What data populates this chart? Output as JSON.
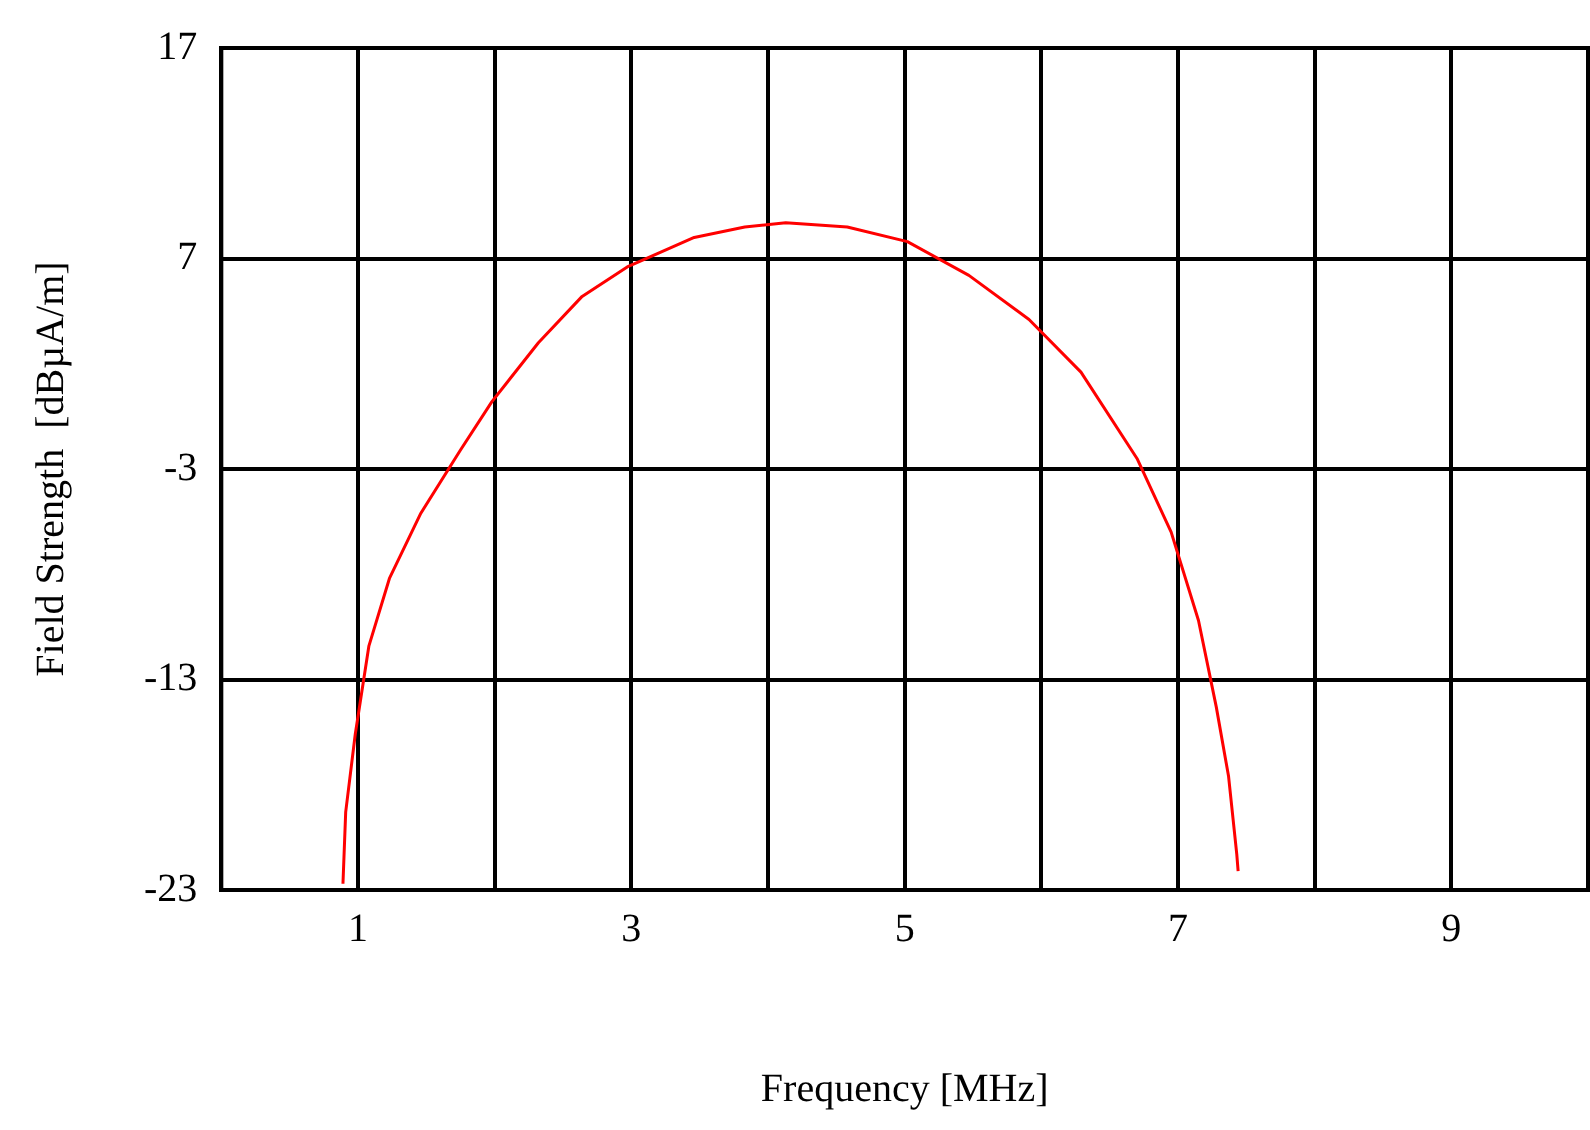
{
  "chart_data": {
    "type": "line",
    "xlabel": "Frequency [MHz]",
    "ylabel": "Field Strength  [dBµA/m]",
    "xlim": [
      0,
      10
    ],
    "ylim": [
      -23,
      17
    ],
    "xticks": [
      {
        "value": 1,
        "label": "1"
      },
      {
        "value": 2,
        "label": null
      },
      {
        "value": 3,
        "label": "3"
      },
      {
        "value": 4,
        "label": null
      },
      {
        "value": 5,
        "label": "5"
      },
      {
        "value": 6,
        "label": null
      },
      {
        "value": 7,
        "label": "7"
      },
      {
        "value": 8,
        "label": null
      },
      {
        "value": 9,
        "label": "9"
      }
    ],
    "yticks": [
      -23,
      -13,
      -3,
      7,
      17
    ],
    "grid": true,
    "marker": "none",
    "series": [
      {
        "color": "#ff0000",
        "x": [
          0.89,
          0.91,
          0.98,
          1.08,
          1.23,
          1.46,
          1.75,
          1.98,
          2.32,
          2.64,
          2.97,
          3.46,
          3.83,
          4.13,
          4.58,
          5.02,
          5.47,
          5.91,
          6.29,
          6.7,
          6.95,
          7.15,
          7.28,
          7.37,
          7.43,
          7.44
        ],
        "values": [
          -22.7,
          -19.3,
          -15.6,
          -11.4,
          -8.2,
          -5.1,
          -2.1,
          0.2,
          3.0,
          5.2,
          6.6,
          8.0,
          8.5,
          8.7,
          8.5,
          7.8,
          6.2,
          4.1,
          1.6,
          -2.5,
          -6.0,
          -10.2,
          -14.3,
          -17.6,
          -21.3,
          -22.1
        ]
      }
    ]
  }
}
